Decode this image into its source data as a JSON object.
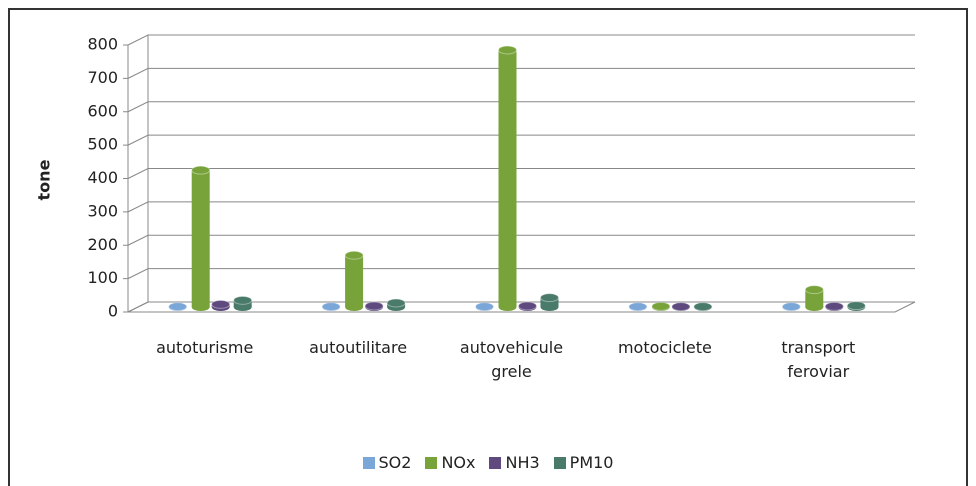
{
  "chart_data": {
    "type": "bar3d",
    "y_label": "tone",
    "categories": [
      "autoturisme",
      "autoutilitare",
      "autovehicule grele",
      "motociclete",
      "transport feroviar"
    ],
    "series": [
      {
        "name": "SO2",
        "color": "#7ba7d8",
        "values": [
          1,
          1,
          1,
          1,
          1
        ]
      },
      {
        "name": "NOx",
        "color": "#77a33a",
        "values": [
          410,
          155,
          770,
          2,
          52
        ]
      },
      {
        "name": "NH3",
        "color": "#5e4a7e",
        "values": [
          8,
          3,
          3,
          1,
          2
        ]
      },
      {
        "name": "PM10",
        "color": "#4a7b6a",
        "values": [
          20,
          12,
          28,
          1,
          4
        ]
      }
    ],
    "ylim": [
      0,
      800
    ],
    "yticks": [
      0,
      100,
      200,
      300,
      400,
      500,
      600,
      700,
      800
    ],
    "grid": true,
    "legend": "bottom"
  }
}
